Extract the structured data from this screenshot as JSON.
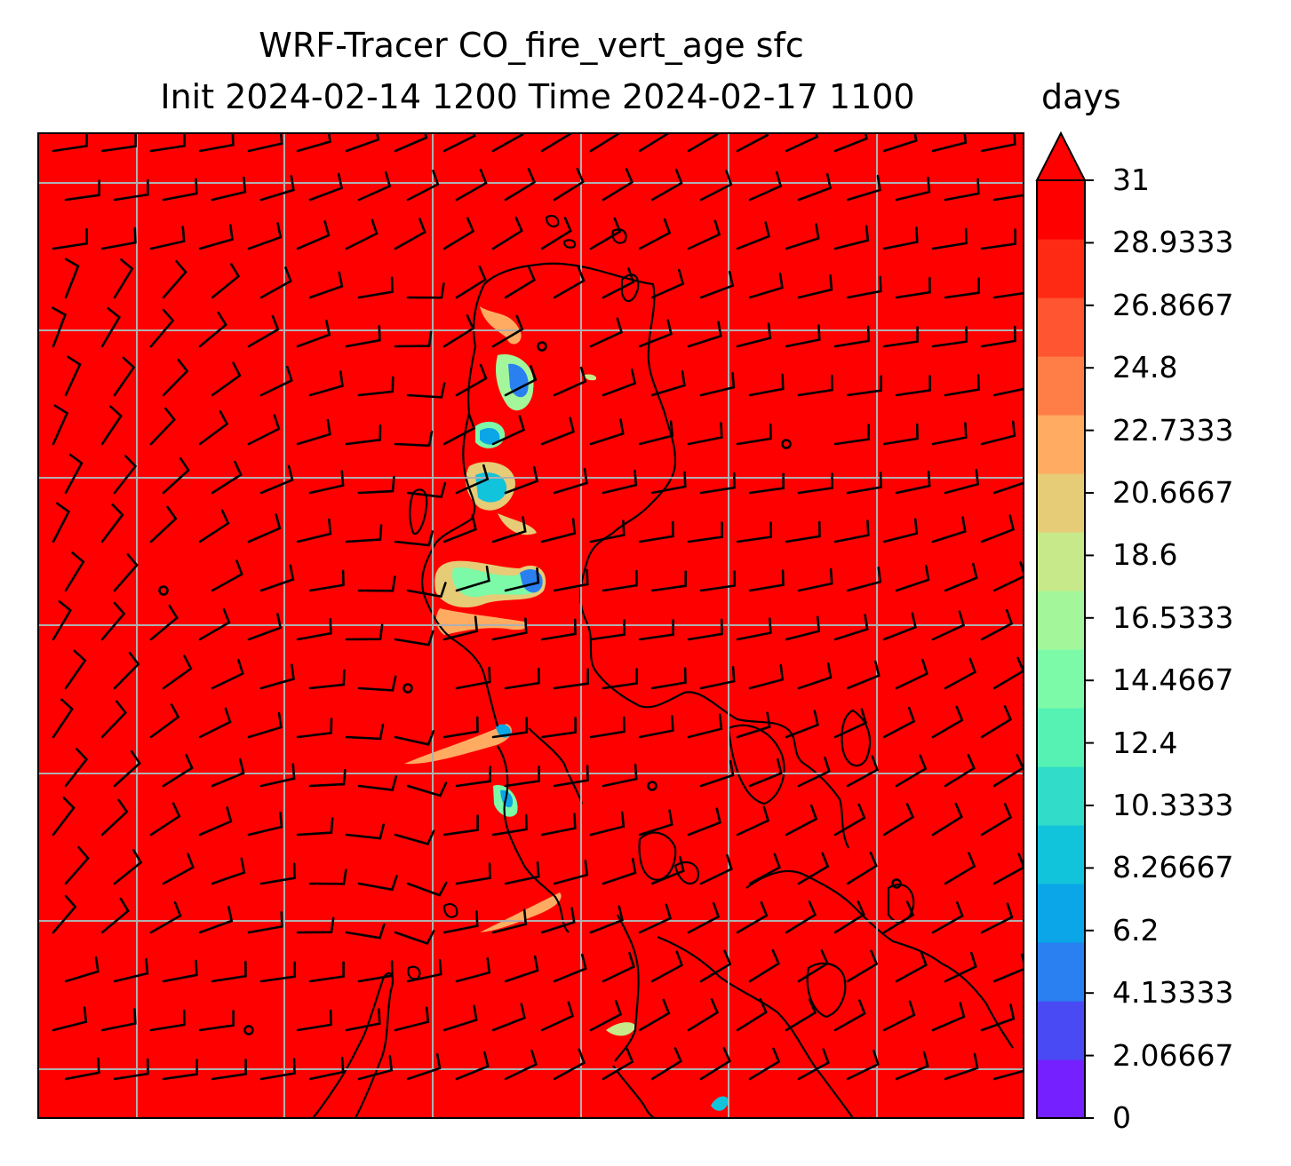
{
  "chart_data": {
    "type": "heatmap",
    "title": "WRF-Tracer CO_fire_vert_age sfc",
    "subtitle": "Init 2024-02-14 1200 Time 2024-02-17 1100",
    "colorbar": {
      "label": "days",
      "min": 0,
      "max": 31,
      "extend": "max",
      "ticks": [
        "0",
        "2.06667",
        "4.13333",
        "6.2",
        "8.26667",
        "10.3333",
        "12.4",
        "14.4667",
        "16.5333",
        "18.6",
        "20.6667",
        "22.7333",
        "24.8",
        "26.8667",
        "28.9333",
        "31"
      ],
      "level_colors": [
        "#7420ff",
        "#4a4af5",
        "#2a80f0",
        "#0aa6e8",
        "#12c3dc",
        "#31dcc9",
        "#55f2b4",
        "#7dfaa8",
        "#a3f79a",
        "#c7e98a",
        "#e6cc76",
        "#ffab62",
        "#ff7e48",
        "#ff5530",
        "#ff2a14",
        "#ff0000"
      ]
    },
    "background_value_color": "#ff0000",
    "grid": true,
    "overlays": [
      "wind barbs",
      "coastlines",
      "gridlines"
    ],
    "low_age_plumes_days_approx": [
      {
        "name": "north plume",
        "min_days": 2,
        "max_days": 16
      },
      {
        "name": "central plume",
        "min_days": 4,
        "max_days": 20
      },
      {
        "name": "southern plume",
        "min_days": 6,
        "max_days": 24
      }
    ]
  }
}
